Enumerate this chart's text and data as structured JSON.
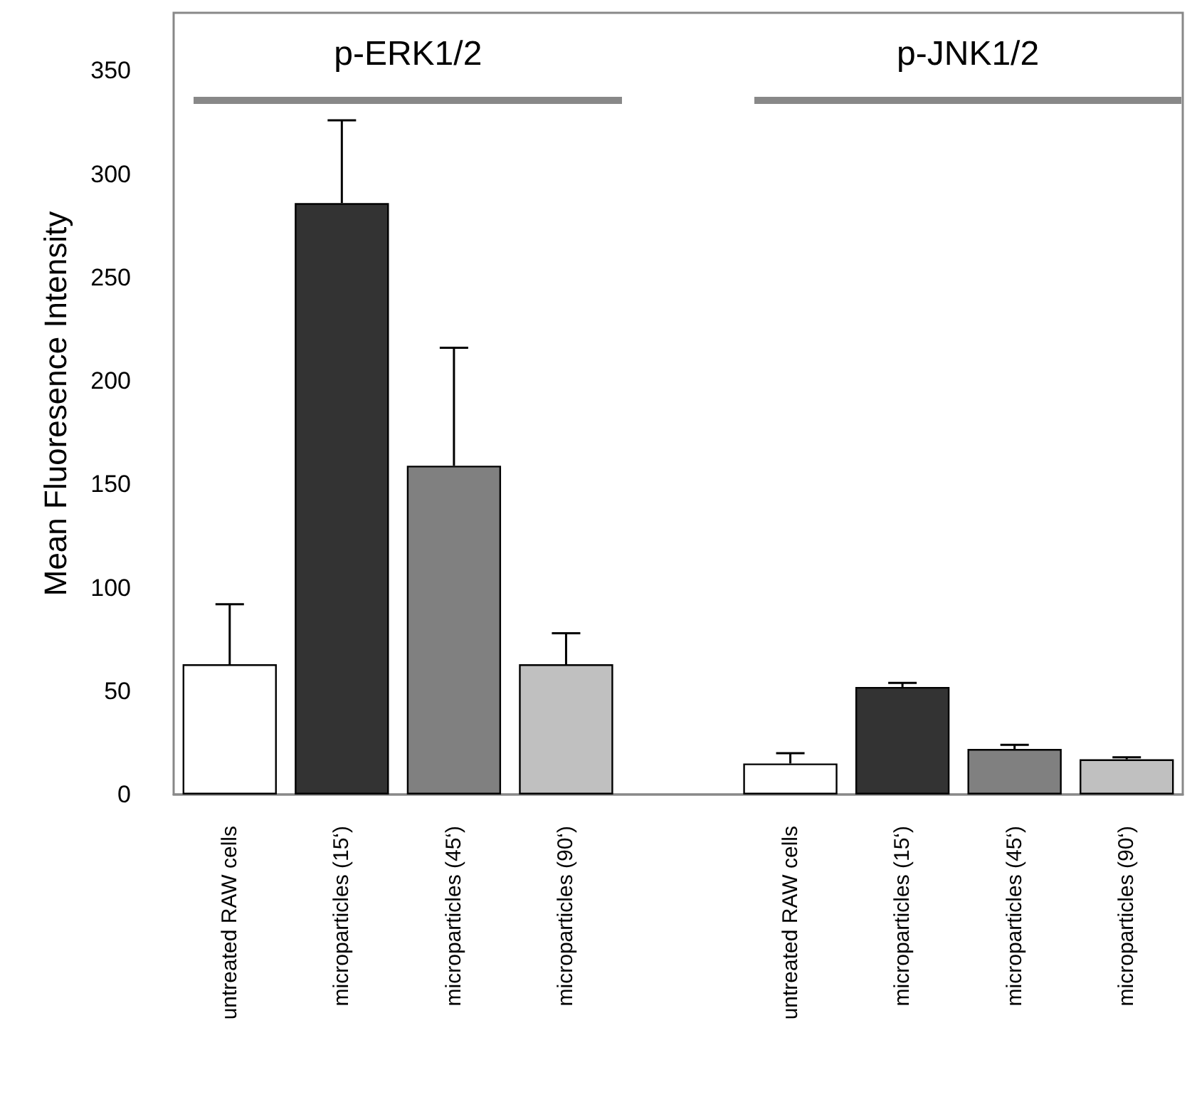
{
  "chart_data": {
    "type": "bar",
    "ylabel": "Mean Fluoresence Intensity",
    "categories": [
      "untreated RAW cells",
      "microparticles (15‘)",
      "microparticles (45‘)",
      "microparticles (90‘)",
      null,
      "untreated RAW cells",
      "microparticles (15‘)",
      "microparticles (45‘)",
      "microparticles (90‘)"
    ],
    "values": [
      63,
      286,
      159,
      63,
      null,
      15,
      52,
      22,
      17
    ],
    "colors": [
      "#ffffff",
      "#333333",
      "#808080",
      "#c0c0c0",
      "#ffffff",
      "#ffffff",
      "#333333",
      "#808080",
      "#c0c0c0"
    ],
    "errors": [
      [
        63,
        92
      ],
      [
        286,
        326
      ],
      [
        159,
        216
      ],
      [
        63,
        78
      ],
      null,
      [
        15,
        20
      ],
      [
        52,
        54
      ],
      [
        22,
        24
      ],
      [
        17,
        18
      ]
    ],
    "ylim": [
      0,
      378
    ],
    "yticks": [
      0,
      50,
      100,
      150,
      200,
      250,
      300,
      350
    ],
    "annotations": [
      "p-ERK1/2",
      "p-JNK1/2"
    ],
    "grid": false
  }
}
